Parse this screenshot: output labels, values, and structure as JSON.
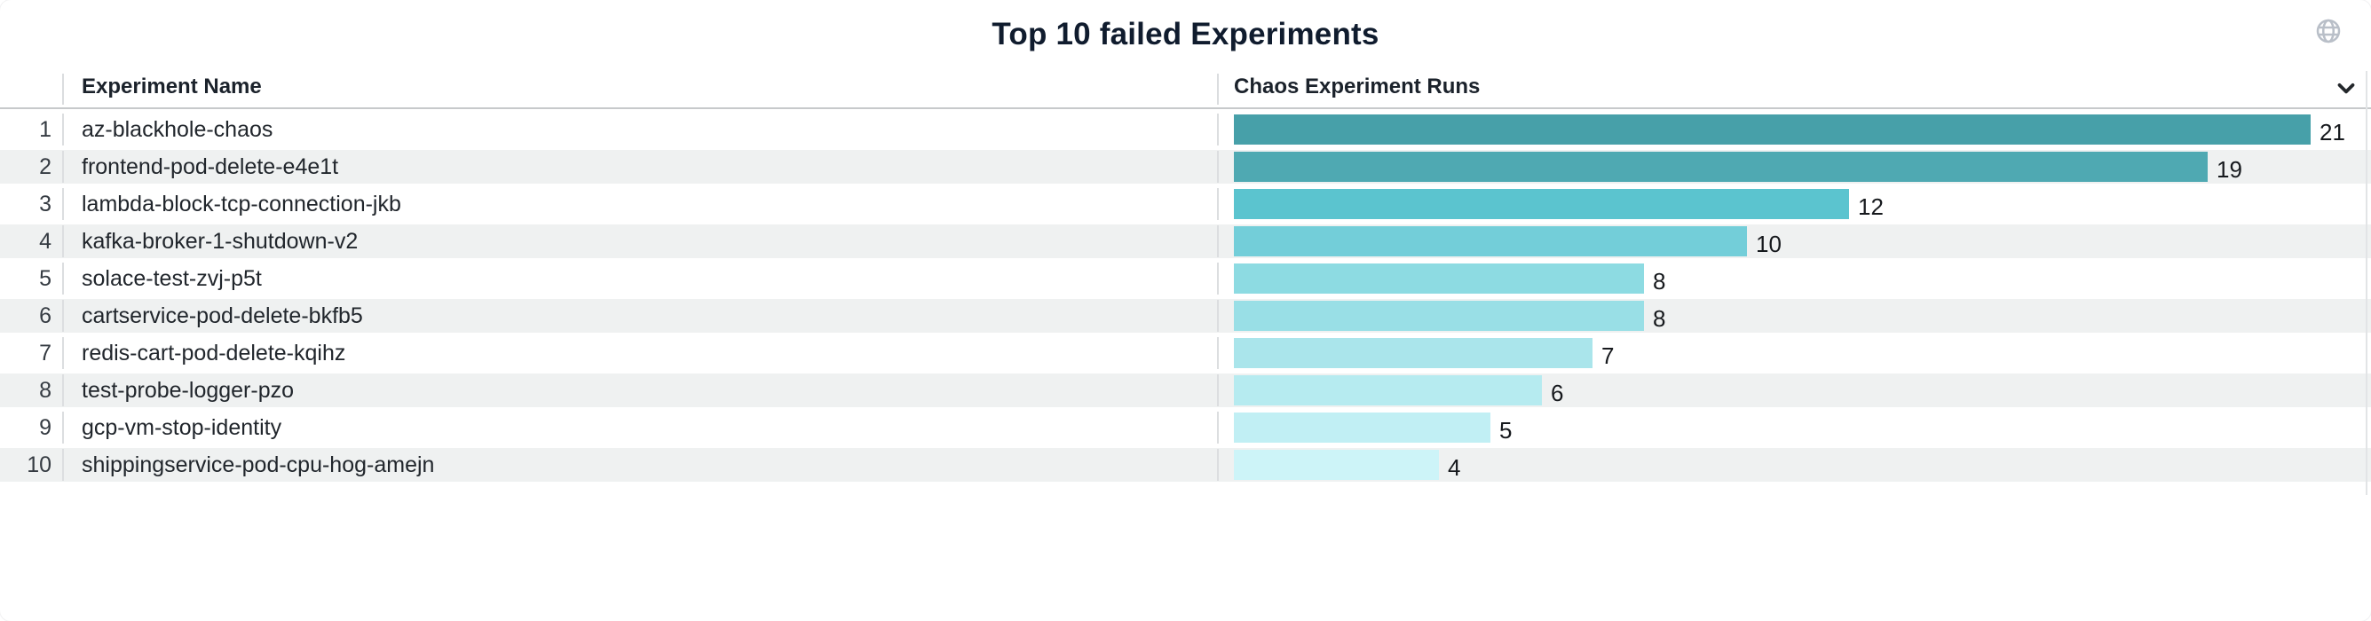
{
  "panel": {
    "title": "Top 10 failed Experiments",
    "columns": {
      "name": "Experiment Name",
      "runs": "Chaos Experiment Runs"
    },
    "icons": {
      "top_right": "globe-icon",
      "runs_header": "chevron-down-icon"
    },
    "colors": {
      "icon_gray": "#B9BFC8",
      "chevron_dark": "#23272B",
      "stripe_gray": "#EFF1F1",
      "header_border": "#C7C9CB",
      "divider": "#DCDEE0"
    }
  },
  "rows": [
    {
      "rank": "1",
      "name": "az-blackhole-chaos",
      "value": "21",
      "color": "#47A0A9"
    },
    {
      "rank": "2",
      "name": "frontend-pod-delete-e4e1t",
      "value": "19",
      "color": "#4FA9B2"
    },
    {
      "rank": "3",
      "name": "lambda-block-tcp-connection-jkb",
      "value": "12",
      "color": "#5BC4CF"
    },
    {
      "rank": "4",
      "name": "kafka-broker-1-shutdown-v2",
      "value": "10",
      "color": "#73CED9"
    },
    {
      "rank": "5",
      "name": "solace-test-zvj-p5t",
      "value": "8",
      "color": "#8DDBE2"
    },
    {
      "rank": "6",
      "name": "cartservice-pod-delete-bkfb5",
      "value": "8",
      "color": "#99DFE6"
    },
    {
      "rank": "7",
      "name": "redis-cart-pod-delete-kqihz",
      "value": "7",
      "color": "#AAE5EB"
    },
    {
      "rank": "8",
      "name": "test-probe-logger-pzo",
      "value": "6",
      "color": "#B6EBF0"
    },
    {
      "rank": "9",
      "name": "gcp-vm-stop-identity",
      "value": "5",
      "color": "#C1EFF4"
    },
    {
      "rank": "10",
      "name": "shippingservice-pod-cpu-hog-amejn",
      "value": "4",
      "color": "#CDF4F8"
    }
  ],
  "chart_data": {
    "type": "bar",
    "orientation": "horizontal",
    "title": "Top 10 failed Experiments",
    "categories": [
      "az-blackhole-chaos",
      "frontend-pod-delete-e4e1t",
      "lambda-block-tcp-connection-jkb",
      "kafka-broker-1-shutdown-v2",
      "solace-test-zvj-p5t",
      "cartservice-pod-delete-bkfb5",
      "redis-cart-pod-delete-kqihz",
      "test-probe-logger-pzo",
      "gcp-vm-stop-identity",
      "shippingservice-pod-cpu-hog-amejn"
    ],
    "values": [
      21,
      19,
      12,
      10,
      8,
      8,
      7,
      6,
      5,
      4
    ],
    "ranks": [
      1,
      2,
      3,
      4,
      5,
      6,
      7,
      8,
      9,
      10
    ],
    "xlabel": "Chaos Experiment Runs",
    "ylabel": "Experiment Name",
    "xlim": [
      0,
      21
    ],
    "grid": false,
    "legend": false,
    "data_labels": true,
    "bar_colors": [
      "#47A0A9",
      "#4FA9B2",
      "#5BC4CF",
      "#73CED9",
      "#8DDBE2",
      "#99DFE6",
      "#AAE5EB",
      "#B6EBF0",
      "#C1EFF4",
      "#CDF4F8"
    ]
  }
}
